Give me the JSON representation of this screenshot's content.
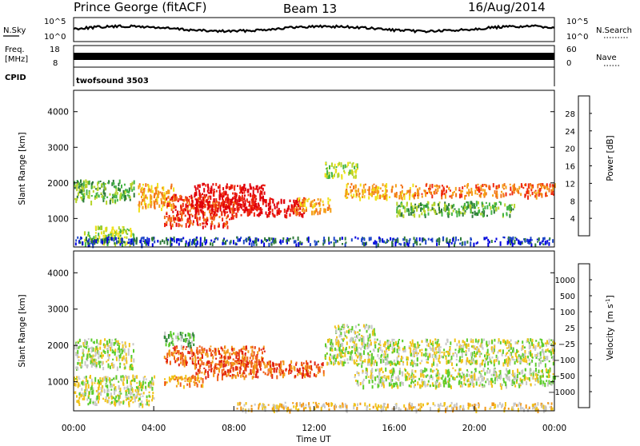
{
  "header": {
    "station": "Prince George (fitACF)",
    "beam": "Beam 13",
    "date": "16/Aug/2014"
  },
  "noise_panel": {
    "left_label": "N.Sky",
    "left_ticks": [
      "10^5",
      "10^0"
    ],
    "right_label": "N.Search",
    "right_ticks": [
      "10^5",
      "10^0"
    ]
  },
  "freq_panel": {
    "left_label_line1": "Freq.",
    "left_label_line2": "[MHz]",
    "left_ticks": [
      "18",
      "8"
    ],
    "right_label": "Nave",
    "right_ticks": [
      "60",
      "0"
    ]
  },
  "cpid_panel": {
    "label": "CPID",
    "program": "twofsound 3503"
  },
  "chart_data": [
    {
      "type": "heatmap",
      "panel": "power",
      "ylabel": "Slant Range [km]",
      "yticks": [
        "1000",
        "2000",
        "3000",
        "4000"
      ],
      "ylim": [
        200,
        4600
      ],
      "xlim_hours": [
        0,
        24
      ],
      "colorbar_label": "Power [dB]",
      "colorbar_ticks": [
        "28",
        "24",
        "20",
        "16",
        "12",
        "8",
        "4"
      ],
      "colorbar_colors": [
        "#0000e0",
        "#1f47c8",
        "#2e7a3a",
        "#45b545",
        "#b6d42a",
        "#f0e11a",
        "#f5a019",
        "#f27318",
        "#ef2a10",
        "#e0000a"
      ],
      "bands": [
        {
          "t0": 0.0,
          "t1": 3.0,
          "r0": 1500,
          "r1": 2100,
          "level": 3
        },
        {
          "t0": 0.5,
          "t1": 3.0,
          "r0": 300,
          "r1": 800,
          "level": 4
        },
        {
          "t0": 3.2,
          "t1": 5.0,
          "r0": 1300,
          "r1": 2000,
          "level": 6
        },
        {
          "t0": 4.5,
          "t1": 8.0,
          "r0": 800,
          "r1": 1700,
          "level": 8
        },
        {
          "t0": 6.0,
          "t1": 9.5,
          "r0": 1200,
          "r1": 2000,
          "level": 9
        },
        {
          "t0": 8.0,
          "t1": 11.5,
          "r0": 1100,
          "r1": 1600,
          "level": 9
        },
        {
          "t0": 11.0,
          "t1": 12.8,
          "r0": 1200,
          "r1": 1600,
          "level": 6
        },
        {
          "t0": 12.5,
          "t1": 14.2,
          "r0": 2200,
          "r1": 2600,
          "level": 4
        },
        {
          "t0": 13.5,
          "t1": 17.0,
          "r0": 1600,
          "r1": 2000,
          "level": 6
        },
        {
          "t0": 17.0,
          "t1": 24.0,
          "r0": 1650,
          "r1": 2000,
          "level": 7
        },
        {
          "t0": 16.0,
          "t1": 22.0,
          "r0": 1100,
          "r1": 1500,
          "level": 3
        },
        {
          "t0": 0.0,
          "t1": 24.0,
          "r0": 300,
          "r1": 500,
          "level": 1
        }
      ]
    },
    {
      "type": "heatmap",
      "panel": "velocity",
      "ylabel": "Slant Range [km]",
      "yticks": [
        "1000",
        "2000",
        "3000",
        "4000"
      ],
      "ylim": [
        200,
        4600
      ],
      "xlim_hours": [
        0,
        24
      ],
      "xticks": [
        "00:00",
        "04:00",
        "08:00",
        "12:00",
        "16:00",
        "20:00",
        "00:00"
      ],
      "xlabel": "Time UT",
      "colorbar_label": "Velocity",
      "colorbar_unit": "[m s",
      "colorbar_unit_exp": "-1",
      "colorbar_unit_close": "]",
      "colorbar_ticks": [
        "1000",
        "500",
        "100",
        "25",
        "−25",
        "−100",
        "−500",
        "−1000"
      ],
      "colorbar_colors": [
        "#1a2fc2",
        "#1c74b4",
        "#2c8a34",
        "#5ccc2c",
        "#c8c8c8",
        "#f0c31a",
        "#f29a1a",
        "#f0601a",
        "#e02010"
      ],
      "bands": [
        {
          "t0": 0.0,
          "t1": 3.0,
          "r0": 1400,
          "r1": 2200,
          "level": 4
        },
        {
          "t0": 0.0,
          "t1": 4.0,
          "r0": 400,
          "r1": 1200,
          "level": 4
        },
        {
          "t0": 4.5,
          "t1": 9.5,
          "r0": 1500,
          "r1": 2000,
          "level": 7
        },
        {
          "t0": 6.0,
          "t1": 12.5,
          "r0": 1150,
          "r1": 1600,
          "level": 7
        },
        {
          "t0": 4.5,
          "t1": 6.5,
          "r0": 900,
          "r1": 1200,
          "level": 6
        },
        {
          "t0": 4.5,
          "t1": 6.0,
          "r0": 2000,
          "r1": 2400,
          "level": 3
        },
        {
          "t0": 12.5,
          "t1": 24.0,
          "r0": 1500,
          "r1": 2200,
          "level": 4
        },
        {
          "t0": 13.0,
          "t1": 15.0,
          "r0": 2200,
          "r1": 2600,
          "level": 4
        },
        {
          "t0": 14.0,
          "t1": 24.0,
          "r0": 900,
          "r1": 1400,
          "level": 4
        },
        {
          "t0": 8.0,
          "t1": 24.0,
          "r0": 250,
          "r1": 450,
          "level": 5
        }
      ]
    }
  ]
}
